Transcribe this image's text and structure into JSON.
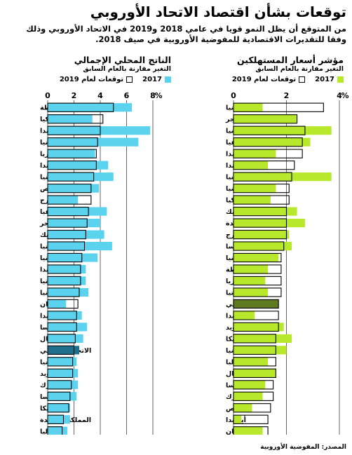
{
  "title": "توقعات بشأن اقتصاد الاتحاد الأوروبي",
  "subtitle": "من المتوقع أن يظل النمو قويا في عامي 2018 و2019 في الاتحاد الأوروبي وذلك وفقا للتقديرات الاقتصادية للمفوضية الأوروبية في صيف 2018.",
  "legend": {
    "current": "2017",
    "forecast": "توقعات لعام 2019"
  },
  "source": "المصدر: المفوضية الأوروبية",
  "colors": {
    "gdp": "#5bd3ee",
    "gdp_eu": "#1f6e8c",
    "cpi": "#b8e82b",
    "cpi_eu": "#5e7a1e",
    "outline": "#000000"
  },
  "chart_data": [
    {
      "type": "bar",
      "orientation": "horizontal",
      "title": "مؤشر أسعار المستهلكين",
      "subtitle": "التغير مقارنة بالعام السابق",
      "axis_unit": "%",
      "xlim": [
        0,
        4
      ],
      "ticks": [
        "0",
        "2",
        "4"
      ],
      "highlight": "الاتحاد الأوروبي",
      "categories": [
        "رومانيا",
        "المجر",
        "إستونيا",
        "لاتفيا",
        "بولندا",
        "هولندا",
        "ليتوانيا",
        "سلوفينيا",
        "سلوفاكيا",
        "جمهورية التشيك",
        "المملكة المتحدة",
        "لوكسمبورج",
        "النمسا",
        "ألمانيا",
        "مالطة",
        "بلغاريا",
        "كرواتيا",
        "الاتحاد الأوروبي",
        "فنلندا",
        "السويد",
        "بلجيكا",
        "إسبانيا",
        "إيطاليا",
        "البرتغال",
        "فرنسا",
        "الدنمرك",
        "قبرص",
        "أيرلندا",
        "اليونان"
      ],
      "series": [
        {
          "name": "2017",
          "values": [
            1.1,
            2.4,
            3.7,
            2.9,
            1.6,
            1.3,
            3.7,
            1.6,
            1.4,
            2.4,
            2.7,
            2.1,
            2.2,
            1.7,
            1.3,
            1.2,
            1.3,
            1.7,
            0.8,
            1.9,
            2.2,
            2.0,
            1.3,
            1.6,
            1.2,
            1.1,
            0.7,
            0.3,
            1.1
          ]
        },
        {
          "name": "توقعات لعام 2019",
          "values": [
            3.4,
            2.4,
            2.7,
            2.6,
            2.6,
            2.3,
            2.2,
            2.1,
            2.1,
            2.0,
            2.0,
            2.0,
            1.9,
            1.8,
            1.8,
            1.8,
            1.8,
            1.7,
            1.7,
            1.7,
            1.6,
            1.6,
            1.6,
            1.6,
            1.5,
            1.5,
            1.4,
            1.3,
            1.3
          ]
        }
      ]
    },
    {
      "type": "bar",
      "orientation": "horizontal",
      "title": "الناتج المحلي الإجمالي",
      "subtitle": "التغير مقارنة بالعام السابق",
      "axis_unit": "%",
      "xlim": [
        0,
        8
      ],
      "ticks": [
        "0",
        "2",
        "4",
        "6",
        "8"
      ],
      "highlight": "الاتحاد الأوروبي",
      "categories": [
        "مالطة",
        "سلوفاكيا",
        "أيرلندا",
        "رومانيا",
        "بلغاريا",
        "بولندا",
        "سلوفينيا",
        "قبرص",
        "لوكسمبورج",
        "لاتفيا",
        "المجر",
        "جمهورية التشيك",
        "إستونيا",
        "ليتوانيا",
        "هولندا",
        "كرواتيا",
        "إسبانيا",
        "اليونان",
        "فنلندا",
        "النمسا",
        "البرتغال",
        "الاتحاد الأوروبي",
        "ألمانيا",
        "السويد",
        "الدنمرك",
        "فرنسا",
        "بلجيكا",
        "المملكة المتحدة",
        "إيطاليا"
      ],
      "series": [
        {
          "name": "2017",
          "values": [
            6.4,
            3.4,
            7.8,
            6.9,
            3.6,
            4.6,
            5.0,
            3.9,
            2.3,
            4.5,
            4.0,
            4.3,
            4.9,
            3.8,
            2.9,
            2.9,
            3.1,
            1.4,
            2.6,
            3.0,
            2.7,
            2.4,
            2.2,
            2.3,
            2.3,
            2.2,
            1.7,
            1.7,
            1.5
          ]
        },
        {
          "name": "توقعات لعام 2019",
          "values": [
            5.0,
            4.2,
            4.0,
            3.8,
            3.7,
            3.7,
            3.5,
            3.3,
            3.3,
            3.1,
            3.0,
            2.9,
            2.8,
            2.6,
            2.5,
            2.5,
            2.4,
            2.3,
            2.2,
            2.2,
            2.1,
            2.0,
            1.9,
            1.9,
            1.8,
            1.7,
            1.6,
            1.2,
            1.1
          ]
        }
      ]
    }
  ]
}
